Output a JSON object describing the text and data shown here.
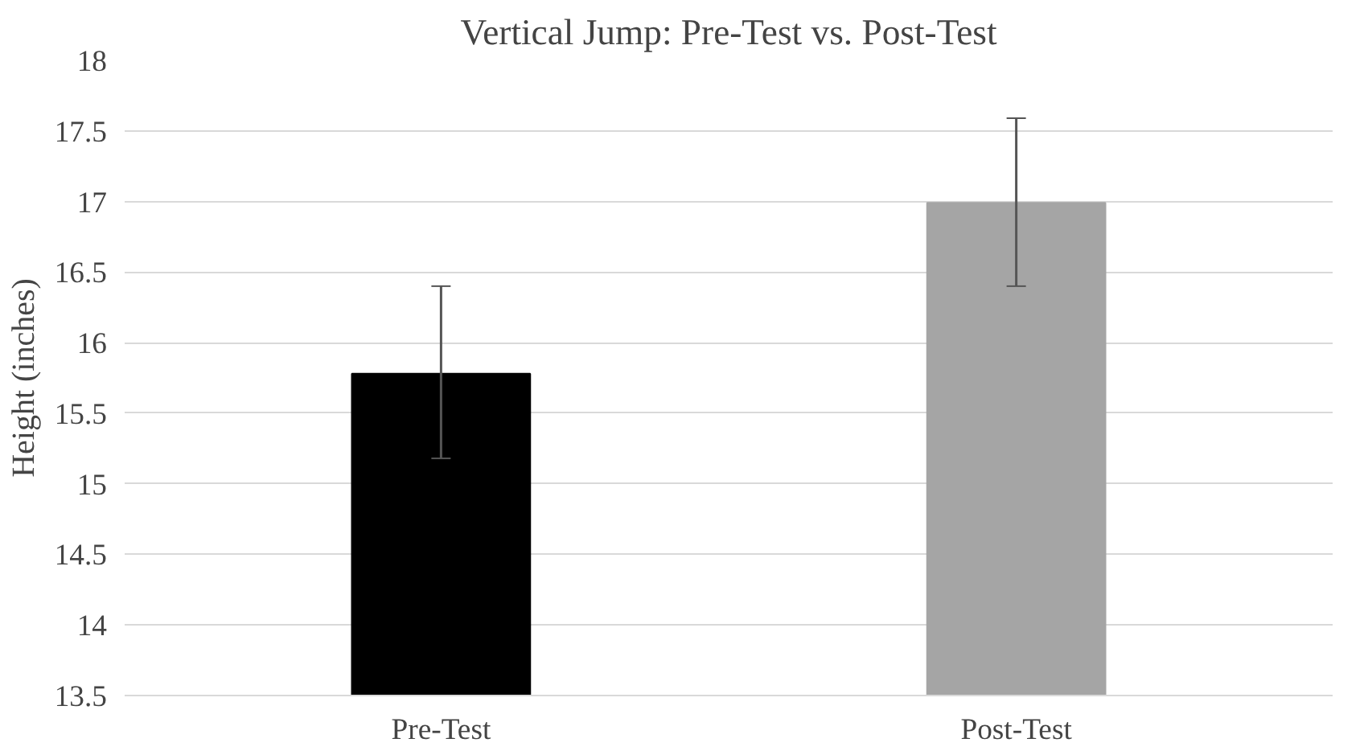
{
  "chart_data": {
    "type": "bar",
    "title": "Vertical Jump: Pre-Test vs. Post-Test",
    "ylabel": "Height (inches)",
    "categories": [
      "Pre-Test",
      "Post-Test"
    ],
    "values": [
      15.78,
      16.99
    ],
    "colors": [
      "#000000",
      "#a5a5a5"
    ],
    "errors": [
      [
        15.18,
        16.4
      ],
      [
        16.4,
        17.59
      ]
    ],
    "ylim": [
      13.5,
      18
    ],
    "yticks": [
      13.5,
      14,
      14.5,
      15,
      15.5,
      16,
      16.5,
      17,
      17.5,
      18
    ],
    "grid": "y"
  }
}
